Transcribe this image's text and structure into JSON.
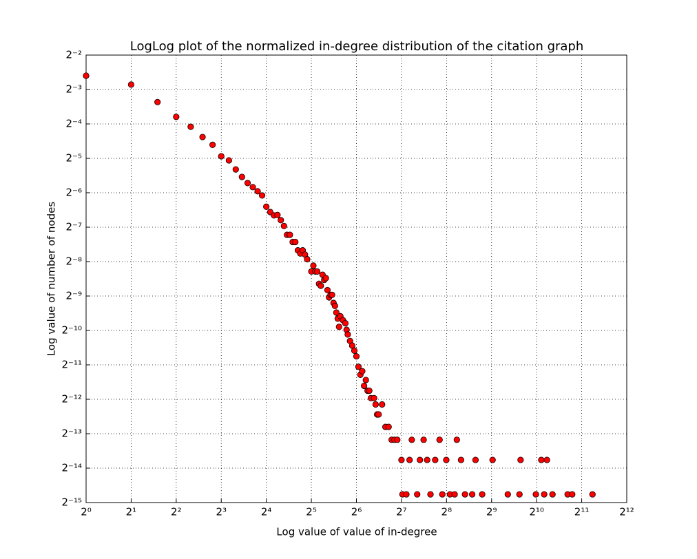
{
  "chart_data": {
    "type": "scatter",
    "title": "LogLog plot of the normalized in-degree distribution of the citation graph",
    "x_label": "Log value of value of in-degree",
    "y_label": "Log value of number of nodes",
    "xscale": "log",
    "yscale": "log",
    "log_base": 2,
    "grid": true,
    "color": "#ff0000",
    "edge_color": "#000000",
    "x": [
      1,
      2,
      3,
      4,
      5,
      6,
      7,
      8,
      9,
      10,
      11,
      12,
      13,
      14,
      15,
      16,
      17,
      18,
      19,
      20,
      21,
      22,
      23,
      24,
      25,
      26,
      27,
      28,
      29,
      30,
      32,
      33,
      34,
      35,
      36,
      37,
      38,
      39,
      40,
      41,
      42,
      43,
      44,
      45,
      46,
      47,
      48,
      49,
      50,
      52,
      54,
      55,
      56,
      58,
      60,
      62,
      64,
      66,
      68,
      70,
      72,
      74,
      76,
      78,
      80,
      84,
      86,
      88,
      90,
      95,
      100,
      105,
      110,
      115,
      120,
      128,
      130,
      138,
      145,
      150,
      163,
      170,
      180,
      190,
      200,
      215,
      230,
      240,
      255,
      270,
      290,
      300,
      320,
      340,
      380,
      400,
      443,
      520,
      657,
      786,
      800,
      1012,
      1100,
      1150,
      1200,
      1307,
      1650,
      1770,
      2418
    ],
    "values": [
      0.165,
      0.138,
      0.097,
      0.072,
      0.059,
      0.048,
      0.041,
      0.0326,
      0.03,
      0.025,
      0.0215,
      0.019,
      0.0175,
      0.0161,
      0.0148,
      0.0118,
      0.0106,
      0.0099,
      0.01,
      0.009,
      0.008,
      0.0067,
      0.0067,
      0.0058,
      0.0058,
      0.0049,
      0.0046,
      0.0049,
      0.0045,
      0.0041,
      0.0032,
      0.0036,
      0.0032,
      0.0032,
      0.0025,
      0.0024,
      0.003,
      0.0027,
      0.0028,
      0.0022,
      0.0019,
      0.002,
      0.002,
      0.0017,
      0.0016,
      0.0014,
      0.00124,
      0.00105,
      0.0013,
      0.0012,
      0.00113,
      0.00099,
      0.0009,
      0.00079,
      0.00072,
      0.00065,
      0.00058,
      0.00047,
      0.0004,
      0.00043,
      0.00032,
      0.00036,
      0.00029,
      0.00029,
      0.00025,
      0.00025,
      0.00022,
      0.00018,
      0.00018,
      0.00022,
      0.00014,
      0.00014,
      0.000108,
      0.000108,
      0.000108,
      7.2e-05,
      3.6e-05,
      3.6e-05,
      7.2e-05,
      0.000108,
      3.6e-05,
      7.2e-05,
      0.000108,
      7.2e-05,
      3.6e-05,
      7.2e-05,
      0.000108,
      3.6e-05,
      7.2e-05,
      3.6e-05,
      3.6e-05,
      0.000108,
      7.2e-05,
      3.6e-05,
      3.6e-05,
      7.2e-05,
      3.6e-05,
      7.2e-05,
      3.6e-05,
      3.6e-05,
      7.2e-05,
      3.6e-05,
      7.2e-05,
      3.6e-05,
      7.2e-05,
      3.6e-05,
      3.6e-05,
      3.6e-05,
      3.6e-05
    ],
    "xlim": [
      1,
      4096
    ],
    "ylim": [
      3.0517578125e-05,
      0.25
    ],
    "xticks": [
      {
        "value": 1,
        "label": "2⁰"
      },
      {
        "value": 2,
        "label": "2¹"
      },
      {
        "value": 4,
        "label": "2²"
      },
      {
        "value": 8,
        "label": "2³"
      },
      {
        "value": 16,
        "label": "2⁴"
      },
      {
        "value": 32,
        "label": "2⁵"
      },
      {
        "value": 64,
        "label": "2⁶"
      },
      {
        "value": 128,
        "label": "2⁷"
      },
      {
        "value": 256,
        "label": "2⁸"
      },
      {
        "value": 512,
        "label": "2⁹"
      },
      {
        "value": 1024,
        "label": "2¹⁰"
      },
      {
        "value": 2048,
        "label": "2¹¹"
      },
      {
        "value": 4096,
        "label": "2¹²"
      }
    ],
    "yticks": [
      {
        "value": 0.25,
        "label": "2⁻²"
      },
      {
        "value": 0.125,
        "label": "2⁻³"
      },
      {
        "value": 0.0625,
        "label": "2⁻⁴"
      },
      {
        "value": 0.03125,
        "label": "2⁻⁵"
      },
      {
        "value": 0.015625,
        "label": "2⁻⁶"
      },
      {
        "value": 0.0078125,
        "label": "2⁻⁷"
      },
      {
        "value": 0.00390625,
        "label": "2⁻⁸"
      },
      {
        "value": 0.001953125,
        "label": "2⁻⁹"
      },
      {
        "value": 0.0009765625,
        "label": "2⁻¹⁰"
      },
      {
        "value": 0.00048828125,
        "label": "2⁻¹¹"
      },
      {
        "value": 0.000244140625,
        "label": "2⁻¹²"
      },
      {
        "value": 0.0001220703125,
        "label": "2⁻¹³"
      },
      {
        "value": 6.103515625e-05,
        "label": "2⁻¹⁴"
      },
      {
        "value": 3.0517578125e-05,
        "label": "2⁻¹⁵"
      }
    ]
  }
}
